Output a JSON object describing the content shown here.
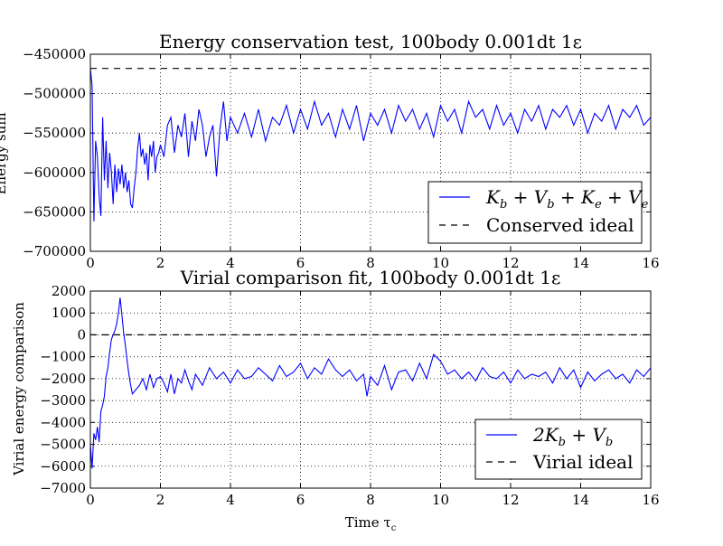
{
  "figure": {
    "xlabel_bottom": "Time τ",
    "xlabel_sub": "c",
    "colors": {
      "series": "#0000ff",
      "ideal": "#000000",
      "grid": "#000000"
    }
  },
  "chart_data": [
    {
      "type": "line",
      "title": "Energy conservation test, 100body 0.001dt 1ε",
      "ylabel": "Energy sum",
      "xlabel": "",
      "xlim": [
        0,
        16
      ],
      "ylim": [
        -700000,
        -450000
      ],
      "xticks": [
        0,
        2,
        4,
        6,
        8,
        10,
        12,
        14,
        16
      ],
      "yticks": [
        -700000,
        -650000,
        -600000,
        -550000,
        -500000,
        -450000
      ],
      "ytick_labels": [
        "−700000",
        "−650000",
        "−600000",
        "−550000",
        "−500000",
        "−450000"
      ],
      "grid": true,
      "legend": {
        "position": "bottom-right",
        "entries": [
          {
            "label": "K_b + V_b + K_e + V_e",
            "style": "solid",
            "color": "#0000ff"
          },
          {
            "label": "Conserved ideal",
            "style": "dashed",
            "color": "#000000"
          }
        ]
      },
      "series": [
        {
          "name": "K_b + V_b + K_e + V_e",
          "style": "solid",
          "x": [
            0,
            0.05,
            0.1,
            0.15,
            0.2,
            0.25,
            0.3,
            0.35,
            0.4,
            0.45,
            0.5,
            0.55,
            0.6,
            0.65,
            0.7,
            0.75,
            0.8,
            0.85,
            0.9,
            0.95,
            1.0,
            1.05,
            1.1,
            1.15,
            1.2,
            1.25,
            1.3,
            1.35,
            1.4,
            1.45,
            1.5,
            1.55,
            1.6,
            1.65,
            1.7,
            1.75,
            1.8,
            1.85,
            1.9,
            1.95,
            2.0,
            2.1,
            2.2,
            2.3,
            2.4,
            2.5,
            2.6,
            2.7,
            2.8,
            2.9,
            3.0,
            3.1,
            3.2,
            3.3,
            3.4,
            3.5,
            3.6,
            3.7,
            3.8,
            3.9,
            4.0,
            4.2,
            4.4,
            4.6,
            4.8,
            5.0,
            5.2,
            5.4,
            5.6,
            5.8,
            6.0,
            6.2,
            6.4,
            6.6,
            6.8,
            7.0,
            7.2,
            7.4,
            7.6,
            7.8,
            8.0,
            8.2,
            8.4,
            8.6,
            8.8,
            9.0,
            9.2,
            9.4,
            9.6,
            9.8,
            10.0,
            10.2,
            10.4,
            10.6,
            10.8,
            11.0,
            11.2,
            11.4,
            11.6,
            11.8,
            12.0,
            12.2,
            12.4,
            12.6,
            12.8,
            13.0,
            13.2,
            13.4,
            13.6,
            13.8,
            14.0,
            14.2,
            14.4,
            14.6,
            14.8,
            15.0,
            15.2,
            15.4,
            15.6,
            15.8,
            16.0
          ],
          "y": [
            -468000,
            -490000,
            -662000,
            -560000,
            -580000,
            -630000,
            -655000,
            -530000,
            -610000,
            -560000,
            -620000,
            -575000,
            -600000,
            -640000,
            -590000,
            -625000,
            -595000,
            -615000,
            -590000,
            -620000,
            -600000,
            -625000,
            -610000,
            -640000,
            -645000,
            -620000,
            -600000,
            -570000,
            -550000,
            -580000,
            -570000,
            -590000,
            -575000,
            -610000,
            -565000,
            -580000,
            -560000,
            -600000,
            -580000,
            -575000,
            -565000,
            -580000,
            -540000,
            -530000,
            -575000,
            -540000,
            -555000,
            -525000,
            -580000,
            -535000,
            -560000,
            -520000,
            -540000,
            -580000,
            -555000,
            -540000,
            -605000,
            -545000,
            -510000,
            -560000,
            -530000,
            -550000,
            -525000,
            -555000,
            -520000,
            -560000,
            -530000,
            -540000,
            -515000,
            -550000,
            -520000,
            -545000,
            -510000,
            -540000,
            -525000,
            -555000,
            -520000,
            -545000,
            -515000,
            -560000,
            -525000,
            -540000,
            -520000,
            -550000,
            -515000,
            -535000,
            -520000,
            -545000,
            -525000,
            -555000,
            -515000,
            -535000,
            -520000,
            -550000,
            -510000,
            -530000,
            -520000,
            -545000,
            -515000,
            -540000,
            -525000,
            -550000,
            -520000,
            -535000,
            -515000,
            -545000,
            -520000,
            -530000,
            -515000,
            -540000,
            -520000,
            -550000,
            -525000,
            -535000,
            -515000,
            -545000,
            -520000,
            -530000,
            -515000,
            -540000,
            -530000
          ]
        },
        {
          "name": "Conserved ideal",
          "style": "dashed",
          "x": [
            0,
            16
          ],
          "y": [
            -468000,
            -468000
          ]
        }
      ]
    },
    {
      "type": "line",
      "title": "Virial comparison fit, 100body 0.001dt 1ε",
      "ylabel": "Virial energy comparison",
      "xlabel": "Time τc",
      "xlim": [
        0,
        16
      ],
      "ylim": [
        -7000,
        2000
      ],
      "xticks": [
        0,
        2,
        4,
        6,
        8,
        10,
        12,
        14,
        16
      ],
      "yticks": [
        -7000,
        -6000,
        -5000,
        -4000,
        -3000,
        -2000,
        -1000,
        0,
        1000,
        2000
      ],
      "ytick_labels": [
        "−7000",
        "−6000",
        "−5000",
        "−4000",
        "−3000",
        "−2000",
        "−1000",
        "0",
        "1000",
        "2000"
      ],
      "grid": true,
      "legend": {
        "position": "bottom-right",
        "entries": [
          {
            "label": "2K_b + V_b",
            "style": "solid",
            "color": "#0000ff"
          },
          {
            "label": "Virial ideal",
            "style": "dashed",
            "color": "#000000"
          }
        ]
      },
      "series": [
        {
          "name": "2K_b + V_b",
          "style": "solid",
          "x": [
            0,
            0.05,
            0.1,
            0.15,
            0.2,
            0.25,
            0.3,
            0.35,
            0.4,
            0.45,
            0.5,
            0.55,
            0.6,
            0.65,
            0.7,
            0.75,
            0.8,
            0.85,
            0.9,
            0.95,
            1.0,
            1.05,
            1.1,
            1.15,
            1.2,
            1.3,
            1.4,
            1.5,
            1.6,
            1.7,
            1.8,
            1.9,
            2.0,
            2.1,
            2.2,
            2.3,
            2.4,
            2.5,
            2.6,
            2.7,
            2.8,
            2.9,
            3.0,
            3.2,
            3.4,
            3.6,
            3.8,
            4.0,
            4.2,
            4.4,
            4.6,
            4.8,
            5.0,
            5.2,
            5.4,
            5.6,
            5.8,
            6.0,
            6.2,
            6.4,
            6.6,
            6.8,
            7.0,
            7.2,
            7.4,
            7.6,
            7.8,
            7.9,
            8.0,
            8.2,
            8.4,
            8.6,
            8.8,
            9.0,
            9.2,
            9.4,
            9.6,
            9.8,
            10.0,
            10.2,
            10.4,
            10.6,
            10.8,
            11.0,
            11.2,
            11.4,
            11.6,
            11.8,
            12.0,
            12.2,
            12.4,
            12.6,
            12.8,
            13.0,
            13.2,
            13.4,
            13.6,
            13.8,
            14.0,
            14.2,
            14.4,
            14.6,
            14.8,
            15.0,
            15.2,
            15.4,
            15.6,
            15.8,
            16.0
          ],
          "y": [
            -5000,
            -6100,
            -4500,
            -4800,
            -4200,
            -4900,
            -3500,
            -3200,
            -2800,
            -1900,
            -1500,
            -800,
            -200,
            0,
            200,
            500,
            1000,
            1700,
            900,
            100,
            -500,
            -1200,
            -1800,
            -2300,
            -2700,
            -2500,
            -2300,
            -2000,
            -2500,
            -1800,
            -2400,
            -2000,
            -1900,
            -2200,
            -2600,
            -1800,
            -2700,
            -2000,
            -2200,
            -1600,
            -2100,
            -2500,
            -1800,
            -2300,
            -1500,
            -2000,
            -1700,
            -2200,
            -1600,
            -2000,
            -1900,
            -1500,
            -1800,
            -2100,
            -1400,
            -1900,
            -1700,
            -1300,
            -2000,
            -1500,
            -1800,
            -1100,
            -1600,
            -1900,
            -1600,
            -2100,
            -1800,
            -2800,
            -1900,
            -2300,
            -1400,
            -2500,
            -1700,
            -1600,
            -2100,
            -1300,
            -2000,
            -900,
            -1200,
            -1800,
            -1600,
            -2000,
            -1700,
            -2100,
            -1500,
            -1900,
            -2000,
            -1700,
            -2200,
            -1600,
            -2000,
            -1800,
            -1900,
            -1700,
            -2200,
            -1500,
            -2000,
            -1600,
            -2400,
            -1700,
            -2100,
            -1800,
            -1600,
            -2000,
            -1800,
            -2200,
            -1600,
            -1900,
            -1500
          ]
        },
        {
          "name": "Virial ideal",
          "style": "dashed",
          "x": [
            0,
            16
          ],
          "y": [
            0,
            0
          ]
        }
      ]
    }
  ]
}
